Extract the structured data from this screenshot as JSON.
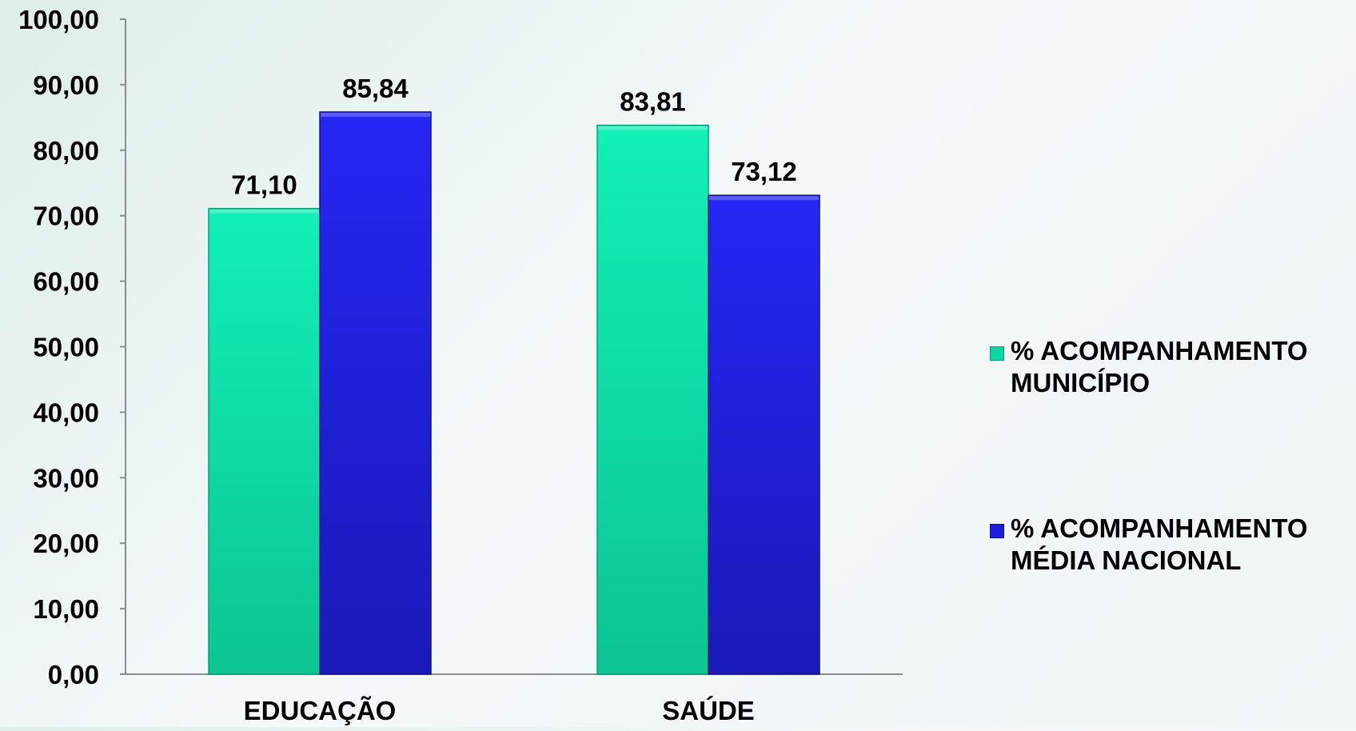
{
  "chart_data": {
    "type": "bar",
    "categories": [
      "EDUCAÇÃO",
      "SAÚDE"
    ],
    "series": [
      {
        "name": "% ACOMPANHAMENTO MUNICÍPIO",
        "values": [
          71.1,
          83.81
        ],
        "color": "#0fd6a4"
      },
      {
        "name": "% ACOMPANHAMENTO MÉDIA NACIONAL",
        "values": [
          85.84,
          73.12
        ],
        "color": "#1e1ee0"
      }
    ],
    "value_labels": [
      [
        "71,10",
        "83,81"
      ],
      [
        "85,84",
        "73,12"
      ]
    ],
    "yticks": [
      "0,00",
      "10,00",
      "20,00",
      "30,00",
      "40,00",
      "50,00",
      "60,00",
      "70,00",
      "80,00",
      "90,00",
      "100,00"
    ],
    "ylim": [
      0,
      100
    ],
    "title": "",
    "xlabel": "",
    "ylabel": "",
    "grid": false,
    "legend_position": "right"
  }
}
